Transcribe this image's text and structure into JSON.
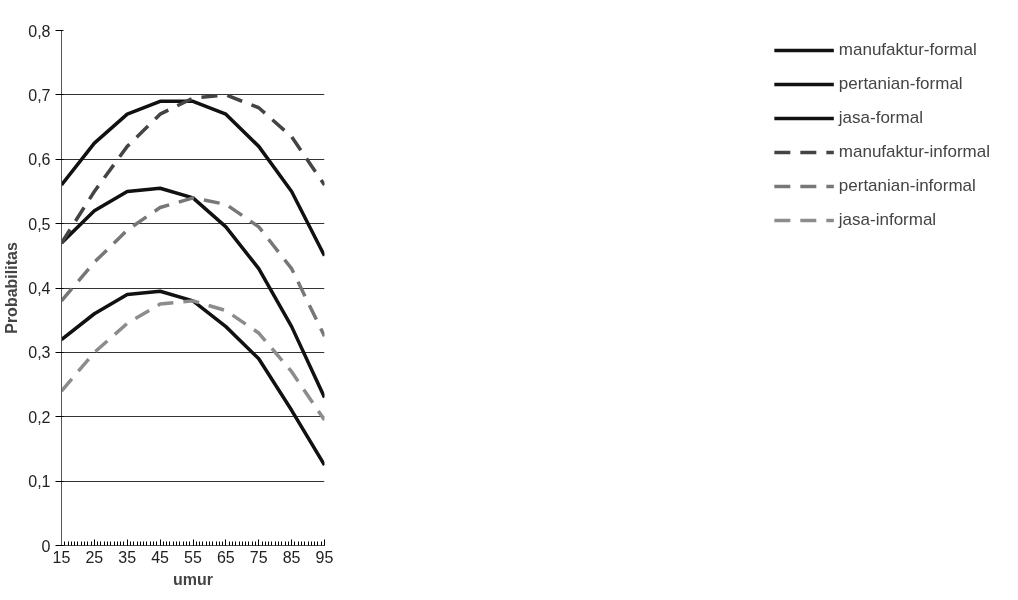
{
  "chart_data": {
    "type": "line",
    "xlabel": "umur",
    "ylabel": "Probabilitas",
    "x": [
      15,
      25,
      35,
      45,
      55,
      65,
      75,
      85,
      95
    ],
    "xlim": [
      15,
      95
    ],
    "xticks": [
      15,
      25,
      35,
      45,
      55,
      65,
      75,
      85,
      95
    ],
    "ylim": [
      0,
      0.8
    ],
    "yticks": [
      {
        "value": 0,
        "label": "0"
      },
      {
        "value": 0.1,
        "label": "0,1"
      },
      {
        "value": 0.2,
        "label": "0,2"
      },
      {
        "value": 0.3,
        "label": "0,3"
      },
      {
        "value": 0.4,
        "label": "0,4"
      },
      {
        "value": 0.5,
        "label": "0,5"
      },
      {
        "value": 0.6,
        "label": "0,6"
      },
      {
        "value": 0.7,
        "label": "0,7"
      },
      {
        "value": 0.8,
        "label": "0,8"
      }
    ],
    "grid": "y",
    "legend": "right",
    "series": [
      {
        "name": "manufaktur-formal",
        "color": "#111111",
        "line_style": "solid",
        "values": [
          0.56,
          0.625,
          0.67,
          0.69,
          0.69,
          0.67,
          0.62,
          0.55,
          0.45
        ]
      },
      {
        "name": "pertanian-formal",
        "color": "#111111",
        "line_style": "solid",
        "values": [
          0.47,
          0.52,
          0.55,
          0.555,
          0.54,
          0.495,
          0.43,
          0.34,
          0.23
        ]
      },
      {
        "name": "jasa-formal",
        "color": "#111111",
        "line_style": "solid",
        "values": [
          0.32,
          0.36,
          0.39,
          0.395,
          0.38,
          0.34,
          0.29,
          0.21,
          0.125
        ]
      },
      {
        "name": "manufaktur-informal",
        "color": "#444444",
        "line_style": "dashed",
        "values": [
          0.47,
          0.55,
          0.62,
          0.67,
          0.695,
          0.7,
          0.68,
          0.635,
          0.56
        ]
      },
      {
        "name": "pertanian-informal",
        "color": "#777777",
        "line_style": "dashed",
        "values": [
          0.38,
          0.44,
          0.49,
          0.525,
          0.54,
          0.53,
          0.495,
          0.43,
          0.325
        ]
      },
      {
        "name": "jasa-informal",
        "color": "#8c8c8c",
        "line_style": "dashed",
        "values": [
          0.24,
          0.3,
          0.345,
          0.375,
          0.38,
          0.365,
          0.33,
          0.27,
          0.195
        ]
      }
    ]
  }
}
